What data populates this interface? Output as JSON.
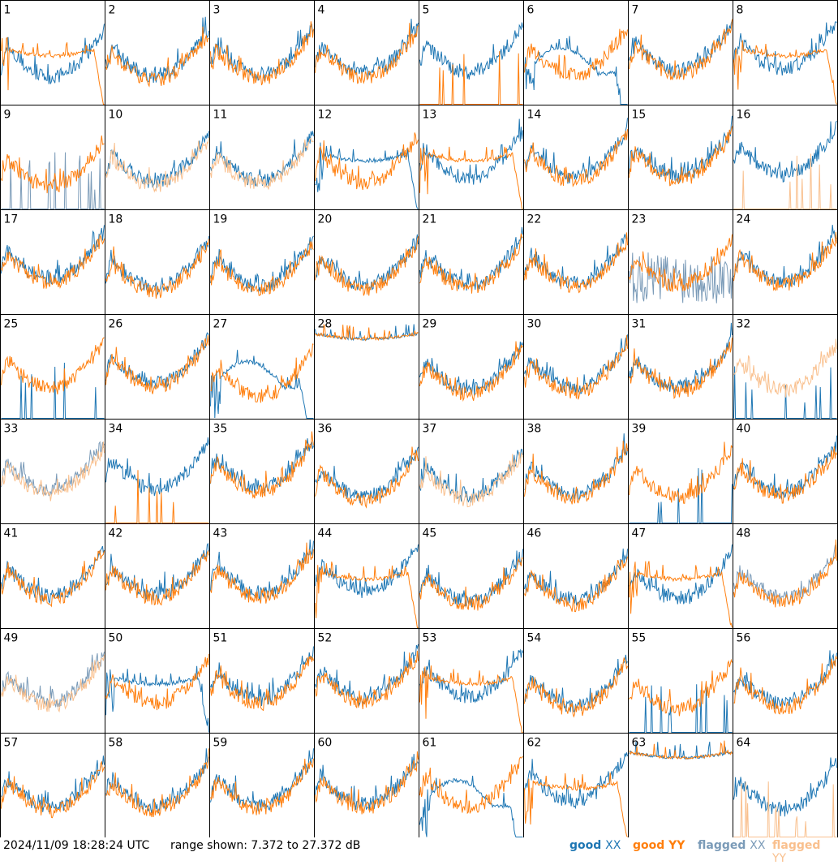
{
  "footer": {
    "timestamp": "2024/11/09 18:28:24 UTC",
    "range_text": "range shown: 7.372 to 27.372 dB"
  },
  "legend": [
    {
      "label_a": "good ",
      "label_b": "XX",
      "color": "#1f77b4"
    },
    {
      "label_a": "good ",
      "label_b": "YY",
      "color": "#ff7f0e"
    },
    {
      "label_a": "flagged ",
      "label_b": "XX",
      "color": "#7b9bb8"
    },
    {
      "label_a": "flagged ",
      "label_b": "YY",
      "color": "#f9c08e"
    }
  ],
  "colors": {
    "good_xx": "#1f77b4",
    "good_yy": "#ff7f0e",
    "flagged_xx": "#7b9bb8",
    "flagged_yy": "#f9c08e"
  },
  "chart_data": {
    "type": "line",
    "layout": "8x8 small multiples",
    "ylim": [
      7.372,
      27.372
    ],
    "y_unit": "dB",
    "panels": [
      {
        "id": 1,
        "xx": "good",
        "yy": "good",
        "xx_shape": "normal",
        "yy_shape": "sag_drop"
      },
      {
        "id": 2,
        "xx": "good",
        "yy": "good",
        "xx_shape": "normal",
        "yy_shape": "normal"
      },
      {
        "id": 3,
        "xx": "good",
        "yy": "good",
        "xx_shape": "normal",
        "yy_shape": "normal"
      },
      {
        "id": 4,
        "xx": "good",
        "yy": "good",
        "xx_shape": "normal",
        "yy_shape": "normal"
      },
      {
        "id": 5,
        "xx": "good",
        "yy": "good",
        "xx_shape": "normal",
        "yy_shape": "spiky_low"
      },
      {
        "id": 6,
        "xx": "good",
        "yy": "good",
        "xx_shape": "hump_drop",
        "yy_shape": "normal"
      },
      {
        "id": 7,
        "xx": "good",
        "yy": "good",
        "xx_shape": "normal",
        "yy_shape": "normal"
      },
      {
        "id": 8,
        "xx": "good",
        "yy": "good",
        "xx_shape": "normal",
        "yy_shape": "sag_drop"
      },
      {
        "id": 9,
        "xx": "flagged",
        "yy": "good",
        "xx_shape": "spiky_low",
        "yy_shape": "normal"
      },
      {
        "id": 10,
        "xx": "good",
        "yy": "flagged",
        "xx_shape": "normal",
        "yy_shape": "normal"
      },
      {
        "id": 11,
        "xx": "good",
        "yy": "flagged",
        "xx_shape": "normal",
        "yy_shape": "normal"
      },
      {
        "id": 12,
        "xx": "good",
        "yy": "good",
        "xx_shape": "sag_drop",
        "yy_shape": "normal"
      },
      {
        "id": 13,
        "xx": "good",
        "yy": "good",
        "xx_shape": "normal",
        "yy_shape": "sag_drop"
      },
      {
        "id": 14,
        "xx": "good",
        "yy": "good",
        "xx_shape": "normal",
        "yy_shape": "normal"
      },
      {
        "id": 15,
        "xx": "good",
        "yy": "good",
        "xx_shape": "normal",
        "yy_shape": "normal"
      },
      {
        "id": 16,
        "xx": "good",
        "yy": "flagged",
        "xx_shape": "normal",
        "yy_shape": "spiky_low"
      },
      {
        "id": 17,
        "xx": "good",
        "yy": "good",
        "xx_shape": "normal",
        "yy_shape": "normal"
      },
      {
        "id": 18,
        "xx": "good",
        "yy": "good",
        "xx_shape": "normal",
        "yy_shape": "normal"
      },
      {
        "id": 19,
        "xx": "good",
        "yy": "good",
        "xx_shape": "normal",
        "yy_shape": "normal"
      },
      {
        "id": 20,
        "xx": "good",
        "yy": "good",
        "xx_shape": "normal",
        "yy_shape": "normal"
      },
      {
        "id": 21,
        "xx": "good",
        "yy": "good",
        "xx_shape": "normal",
        "yy_shape": "normal"
      },
      {
        "id": 22,
        "xx": "good",
        "yy": "good",
        "xx_shape": "normal",
        "yy_shape": "normal"
      },
      {
        "id": 23,
        "xx": "flagged",
        "yy": "good",
        "xx_shape": "noisy_band",
        "yy_shape": "normal"
      },
      {
        "id": 24,
        "xx": "good",
        "yy": "good",
        "xx_shape": "normal",
        "yy_shape": "normal"
      },
      {
        "id": 25,
        "xx": "good",
        "yy": "good",
        "xx_shape": "spiky_low",
        "yy_shape": "normal"
      },
      {
        "id": 26,
        "xx": "good",
        "yy": "good",
        "xx_shape": "normal",
        "yy_shape": "normal"
      },
      {
        "id": 27,
        "xx": "good",
        "yy": "good",
        "xx_shape": "hump_drop",
        "yy_shape": "normal"
      },
      {
        "id": 28,
        "xx": "good",
        "yy": "good",
        "xx_shape": "flat_high",
        "yy_shape": "flat_high"
      },
      {
        "id": 29,
        "xx": "good",
        "yy": "good",
        "xx_shape": "normal",
        "yy_shape": "normal"
      },
      {
        "id": 30,
        "xx": "good",
        "yy": "good",
        "xx_shape": "normal",
        "yy_shape": "normal"
      },
      {
        "id": 31,
        "xx": "good",
        "yy": "good",
        "xx_shape": "normal",
        "yy_shape": "normal"
      },
      {
        "id": 32,
        "xx": "good",
        "yy": "flagged",
        "xx_shape": "spiky_low",
        "yy_shape": "normal"
      },
      {
        "id": 33,
        "xx": "flagged",
        "yy": "flagged",
        "xx_shape": "normal",
        "yy_shape": "normal"
      },
      {
        "id": 34,
        "xx": "good",
        "yy": "good",
        "xx_shape": "normal",
        "yy_shape": "spiky_low"
      },
      {
        "id": 35,
        "xx": "good",
        "yy": "good",
        "xx_shape": "normal",
        "yy_shape": "normal"
      },
      {
        "id": 36,
        "xx": "good",
        "yy": "good",
        "xx_shape": "normal",
        "yy_shape": "normal"
      },
      {
        "id": 37,
        "xx": "good",
        "yy": "flagged",
        "xx_shape": "normal",
        "yy_shape": "normal"
      },
      {
        "id": 38,
        "xx": "good",
        "yy": "good",
        "xx_shape": "normal",
        "yy_shape": "normal"
      },
      {
        "id": 39,
        "xx": "good",
        "yy": "good",
        "xx_shape": "spiky_low",
        "yy_shape": "normal"
      },
      {
        "id": 40,
        "xx": "good",
        "yy": "good",
        "xx_shape": "normal",
        "yy_shape": "normal"
      },
      {
        "id": 41,
        "xx": "good",
        "yy": "good",
        "xx_shape": "normal",
        "yy_shape": "normal"
      },
      {
        "id": 42,
        "xx": "good",
        "yy": "good",
        "xx_shape": "normal",
        "yy_shape": "normal"
      },
      {
        "id": 43,
        "xx": "good",
        "yy": "good",
        "xx_shape": "normal",
        "yy_shape": "normal"
      },
      {
        "id": 44,
        "xx": "good",
        "yy": "good",
        "xx_shape": "normal",
        "yy_shape": "sag_drop"
      },
      {
        "id": 45,
        "xx": "good",
        "yy": "good",
        "xx_shape": "normal",
        "yy_shape": "normal"
      },
      {
        "id": 46,
        "xx": "good",
        "yy": "good",
        "xx_shape": "normal",
        "yy_shape": "normal"
      },
      {
        "id": 47,
        "xx": "good",
        "yy": "good",
        "xx_shape": "normal",
        "yy_shape": "sag_drop"
      },
      {
        "id": 48,
        "xx": "flagged",
        "yy": "good",
        "xx_shape": "normal",
        "yy_shape": "normal"
      },
      {
        "id": 49,
        "xx": "flagged",
        "yy": "flagged",
        "xx_shape": "normal",
        "yy_shape": "normal"
      },
      {
        "id": 50,
        "xx": "good",
        "yy": "good",
        "xx_shape": "sag_drop",
        "yy_shape": "normal"
      },
      {
        "id": 51,
        "xx": "good",
        "yy": "good",
        "xx_shape": "normal",
        "yy_shape": "normal"
      },
      {
        "id": 52,
        "xx": "good",
        "yy": "good",
        "xx_shape": "normal",
        "yy_shape": "normal"
      },
      {
        "id": 53,
        "xx": "good",
        "yy": "good",
        "xx_shape": "normal",
        "yy_shape": "sag_drop"
      },
      {
        "id": 54,
        "xx": "good",
        "yy": "good",
        "xx_shape": "normal",
        "yy_shape": "normal"
      },
      {
        "id": 55,
        "xx": "good",
        "yy": "good",
        "xx_shape": "spiky_low",
        "yy_shape": "normal"
      },
      {
        "id": 56,
        "xx": "good",
        "yy": "good",
        "xx_shape": "normal",
        "yy_shape": "normal"
      },
      {
        "id": 57,
        "xx": "good",
        "yy": "good",
        "xx_shape": "normal",
        "yy_shape": "normal"
      },
      {
        "id": 58,
        "xx": "good",
        "yy": "good",
        "xx_shape": "normal",
        "yy_shape": "normal"
      },
      {
        "id": 59,
        "xx": "good",
        "yy": "good",
        "xx_shape": "normal",
        "yy_shape": "normal"
      },
      {
        "id": 60,
        "xx": "good",
        "yy": "good",
        "xx_shape": "normal",
        "yy_shape": "normal"
      },
      {
        "id": 61,
        "xx": "good",
        "yy": "good",
        "xx_shape": "hump_drop",
        "yy_shape": "normal"
      },
      {
        "id": 62,
        "xx": "good",
        "yy": "good",
        "xx_shape": "normal",
        "yy_shape": "sag_drop"
      },
      {
        "id": 63,
        "xx": "good",
        "yy": "good",
        "xx_shape": "flat_high",
        "yy_shape": "flat_high"
      },
      {
        "id": 64,
        "xx": "good",
        "yy": "flagged",
        "xx_shape": "normal",
        "yy_shape": "spiky_low"
      }
    ]
  }
}
